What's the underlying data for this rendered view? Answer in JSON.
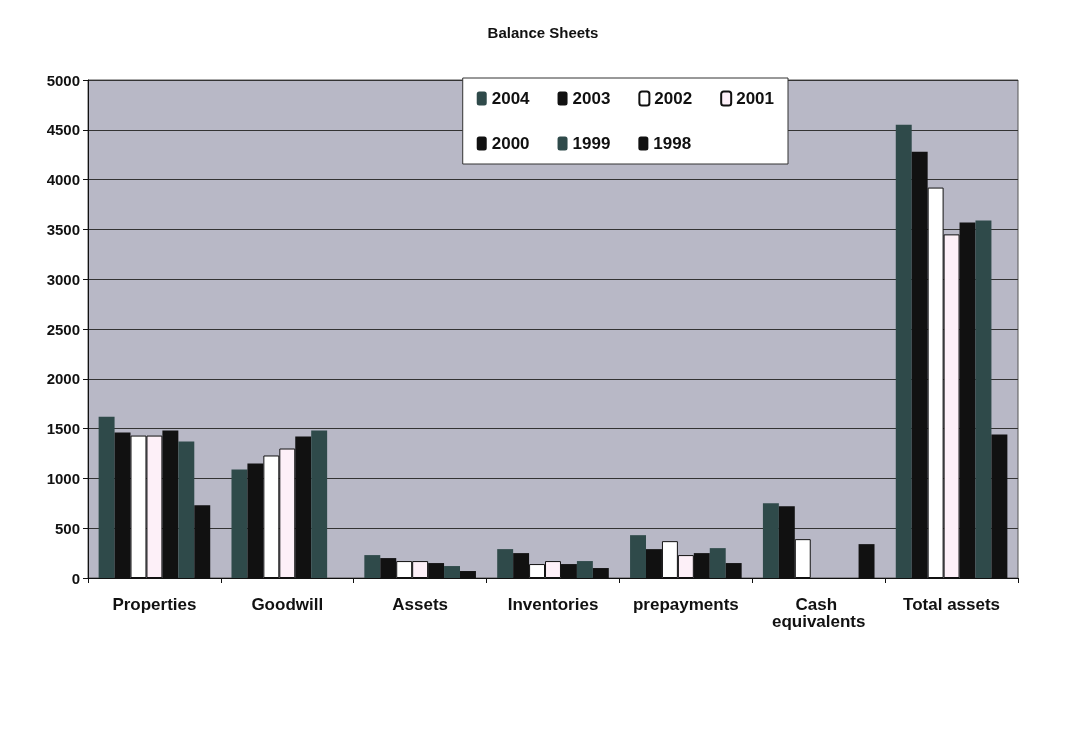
{
  "chart_data": {
    "type": "bar",
    "title": "Balance Sheets",
    "categories": [
      "Properties",
      "Goodwill",
      "Assets",
      "Inventories",
      "prepayments",
      "Cash equivalents",
      "Total assets"
    ],
    "series": [
      {
        "name": "2004",
        "color": "#2f4a4a",
        "values": [
          1620,
          1090,
          230,
          290,
          430,
          750,
          4550
        ]
      },
      {
        "name": "2003",
        "color": "#111111",
        "values": [
          1460,
          1150,
          200,
          250,
          290,
          720,
          4280
        ]
      },
      {
        "name": "2002",
        "color": "#ffffff",
        "values": [
          1430,
          1230,
          170,
          140,
          370,
          390,
          3920
        ]
      },
      {
        "name": "2001",
        "color": "#fdf0f8",
        "values": [
          1430,
          1300,
          170,
          170,
          230,
          null,
          3450
        ]
      },
      {
        "name": "2000",
        "color": "#111111",
        "values": [
          1480,
          1420,
          150,
          140,
          250,
          null,
          3570
        ]
      },
      {
        "name": "1999",
        "color": "#2f4a4a",
        "values": [
          1370,
          1480,
          120,
          170,
          300,
          null,
          3590
        ]
      },
      {
        "name": "1998",
        "color": "#111111",
        "values": [
          730,
          null,
          70,
          100,
          150,
          340,
          1440
        ]
      }
    ],
    "ylim": [
      0,
      5000
    ],
    "yticks": [
      0,
      500,
      1000,
      1500,
      2000,
      2500,
      3000,
      3500,
      4000,
      4500,
      5000
    ],
    "grid": "y",
    "legend": "top right"
  }
}
